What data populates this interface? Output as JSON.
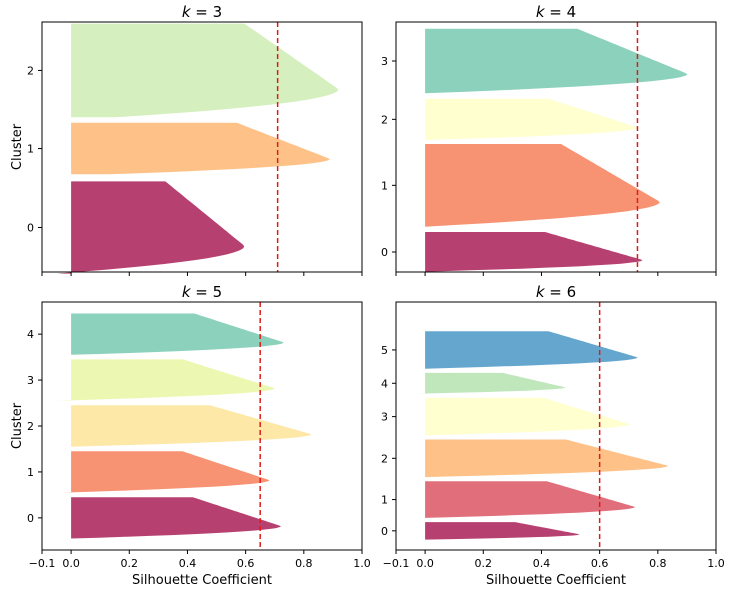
{
  "chart_data": {
    "type": "silhouette",
    "xlabel": "Silhouette Coefficient",
    "ylabel": "Cluster",
    "xlim": [
      -0.1,
      1.0
    ],
    "xticks": [
      -0.1,
      0.0,
      0.2,
      0.4,
      0.6,
      0.8,
      1.0
    ],
    "xtick_labels": [
      "−0.1",
      "0.0",
      "0.2",
      "0.4",
      "0.6",
      "0.8",
      "1.0"
    ],
    "line_color": "#e31a1c",
    "panels": [
      {
        "title_k": "3",
        "ylim": [
          -0.58,
          2.62
        ],
        "average_silhouette": 0.71,
        "clusters": [
          {
            "label": "0",
            "y_range": [
              -0.6,
              0.58
            ],
            "max": 0.63,
            "min": -0.05,
            "color": "#9e0142"
          },
          {
            "label": "1",
            "y_range": [
              0.67,
              1.33
            ],
            "max": 0.93,
            "min": 0.13,
            "color": "#fdae61"
          },
          {
            "label": "2",
            "y_range": [
              1.4,
              2.6
            ],
            "max": 0.96,
            "min": 0.15,
            "color": "#c7e9a9"
          }
        ]
      },
      {
        "title_k": "4",
        "ylim": [
          -0.3,
          3.45
        ],
        "average_silhouette": 0.73,
        "clusters": [
          {
            "label": "0",
            "y_range": [
              -0.3,
              0.3
            ],
            "max": 0.79,
            "min": -0.05,
            "color": "#9e0142"
          },
          {
            "label": "1",
            "y_range": [
              0.38,
              1.62
            ],
            "max": 0.85,
            "min": 0.0,
            "color": "#f46d43"
          },
          {
            "label": "2",
            "y_range": [
              1.68,
              2.3
            ],
            "max": 0.77,
            "min": 0.0,
            "color": "#ffffbf"
          },
          {
            "label": "3",
            "y_range": [
              2.38,
              3.35
            ],
            "max": 0.95,
            "min": 0.0,
            "color": "#66c2a5"
          }
        ]
      },
      {
        "title_k": "5",
        "ylim": [
          -0.7,
          4.7
        ],
        "average_silhouette": 0.65,
        "clusters": [
          {
            "label": "0",
            "y_range": [
              -0.45,
              0.45
            ],
            "max": 0.76,
            "min": 0.0,
            "color": "#9e0142"
          },
          {
            "label": "1",
            "y_range": [
              0.55,
              1.45
            ],
            "max": 0.72,
            "min": -0.03,
            "color": "#f46d43"
          },
          {
            "label": "2",
            "y_range": [
              1.55,
              2.45
            ],
            "max": 0.87,
            "min": 0.0,
            "color": "#fee08b"
          },
          {
            "label": "3",
            "y_range": [
              2.55,
              3.45
            ],
            "max": 0.74,
            "min": -0.05,
            "color": "#e6f598"
          },
          {
            "label": "4",
            "y_range": [
              3.55,
              4.45
            ],
            "max": 0.77,
            "min": 0.0,
            "color": "#66c2a5"
          }
        ]
      },
      {
        "title_k": "6",
        "ylim": [
          -0.45,
          5.5
        ],
        "average_silhouette": 0.6,
        "clusters": [
          {
            "label": "0",
            "y_range": [
              -0.2,
              0.22
            ],
            "max": 0.56,
            "min": 0.0,
            "color": "#9e0142"
          },
          {
            "label": "1",
            "y_range": [
              0.32,
              1.2
            ],
            "max": 0.76,
            "min": 0.0,
            "color": "#d53e4f"
          },
          {
            "label": "2",
            "y_range": [
              1.3,
              2.2
            ],
            "max": 0.88,
            "min": 0.0,
            "color": "#fdae61"
          },
          {
            "label": "3",
            "y_range": [
              2.3,
              3.2
            ],
            "max": 0.74,
            "min": 0.0,
            "color": "#ffffbf"
          },
          {
            "label": "4",
            "y_range": [
              3.3,
              3.8
            ],
            "max": 0.51,
            "min": -0.03,
            "color": "#abdda4"
          },
          {
            "label": "5",
            "y_range": [
              3.9,
              4.8
            ],
            "max": 0.77,
            "min": 0.0,
            "color": "#3288bd"
          }
        ]
      }
    ]
  }
}
